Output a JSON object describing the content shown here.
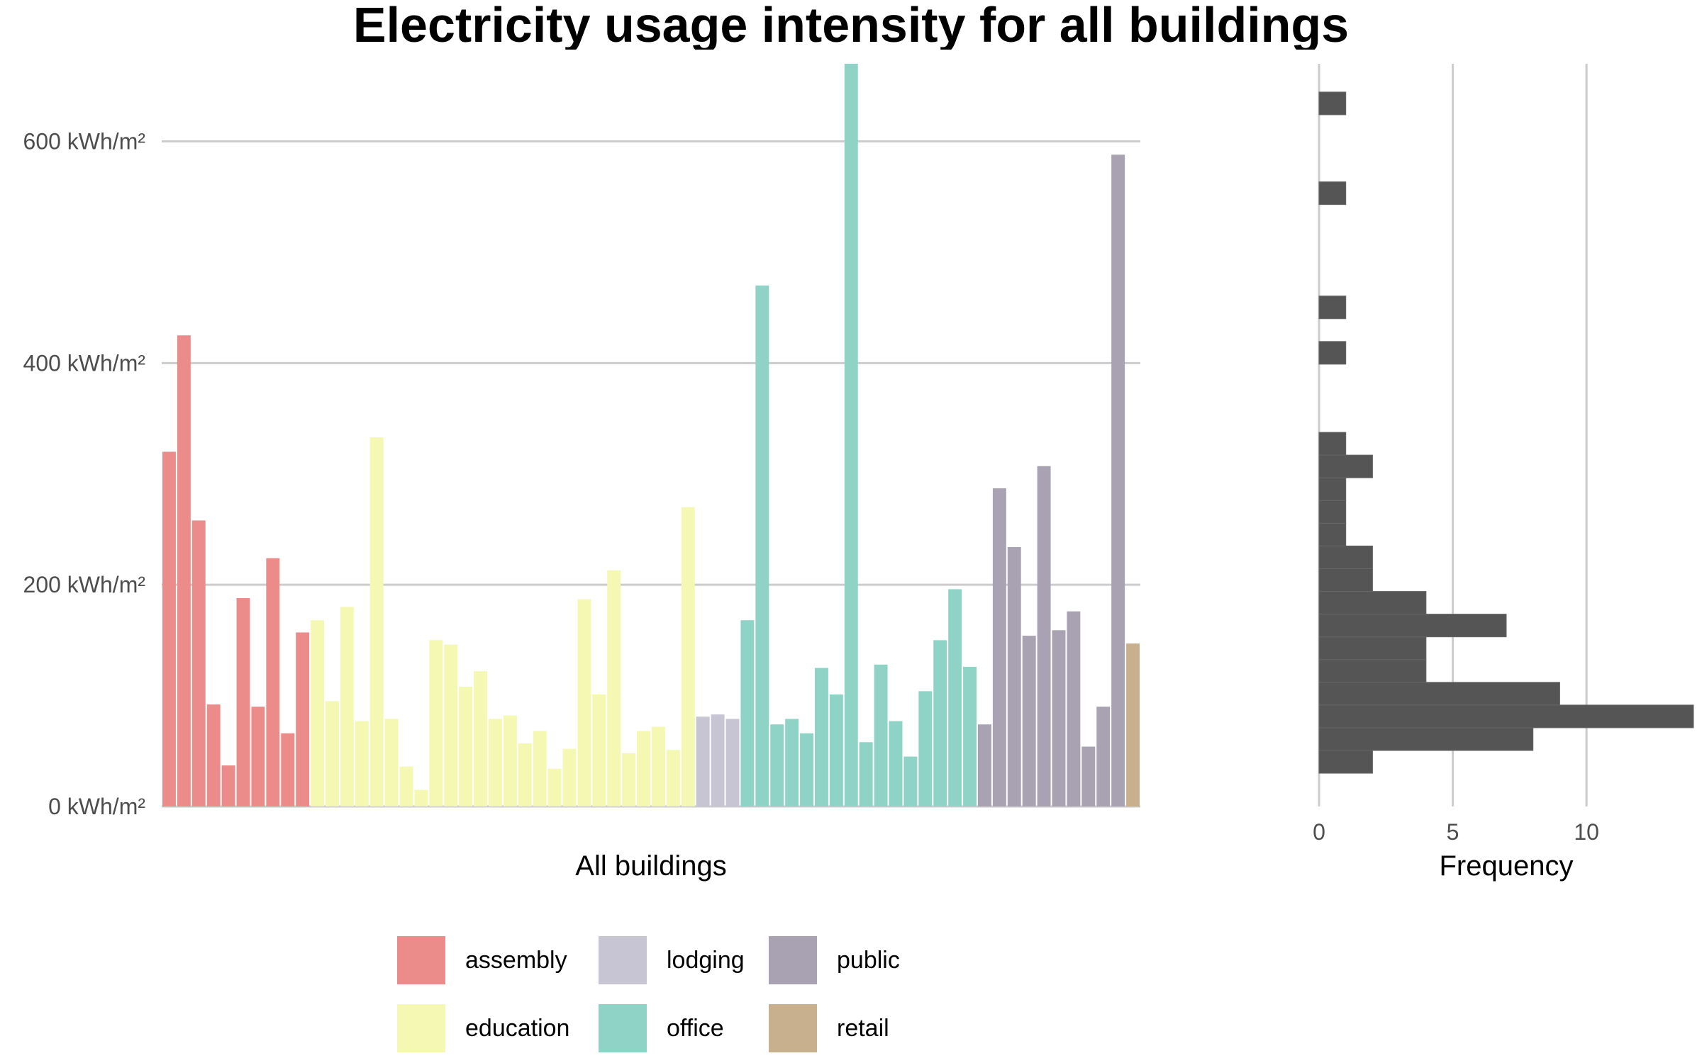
{
  "chart_data": [
    {
      "type": "bar",
      "title": "Electricity usage intensity for all buildings",
      "xlabel": "All buildings",
      "ylabel": "",
      "ylim": [
        0,
        670
      ],
      "y_ticks": [
        0,
        200,
        400,
        600
      ],
      "y_tick_labels": [
        "0 kWh/m²",
        "200 kWh/m²",
        "400 kWh/m²",
        "600 kWh/m²"
      ],
      "grid": "horizontal major",
      "legend_position": "bottom",
      "series": [
        {
          "name": "assembly",
          "color": "#eb8c8a",
          "values": [
            320,
            425,
            258,
            92,
            37,
            188,
            90,
            224,
            66,
            157
          ]
        },
        {
          "name": "education",
          "color": "#f4f8b2",
          "values": [
            168,
            95,
            180,
            77,
            333,
            79,
            36,
            15,
            150,
            146,
            108,
            122,
            79,
            82,
            57,
            68,
            34,
            52,
            187,
            101,
            213,
            48,
            68,
            72,
            51,
            270
          ]
        },
        {
          "name": "lodging",
          "color": "#c7c4d3",
          "values": [
            81,
            83,
            79
          ]
        },
        {
          "name": "office",
          "color": "#8ed3c6",
          "values": [
            168,
            470,
            74,
            79,
            66,
            125,
            101,
            672,
            58,
            128,
            77,
            45,
            104,
            150,
            196,
            126
          ]
        },
        {
          "name": "public",
          "color": "#a9a2b3",
          "values": [
            74,
            287,
            234,
            154,
            307,
            159,
            176,
            54,
            90,
            588
          ]
        },
        {
          "name": "retail",
          "color": "#c8b08f",
          "values": [
            147
          ]
        }
      ]
    },
    {
      "type": "bar",
      "orientation": "horizontal",
      "xlabel": "Frequency",
      "ylabel": "",
      "x_ticks": [
        0,
        5,
        10
      ],
      "x_tick_labels": [
        "0",
        "5",
        "10"
      ],
      "xlim": [
        0,
        14
      ],
      "ylim": [
        0,
        670
      ],
      "bin_width": 20.5,
      "color": "#555555",
      "bins": [
        {
          "from": 30,
          "to": 50.5,
          "count": 2
        },
        {
          "from": 50.5,
          "to": 71,
          "count": 8
        },
        {
          "from": 71,
          "to": 91.5,
          "count": 14
        },
        {
          "from": 91.5,
          "to": 112,
          "count": 9
        },
        {
          "from": 112,
          "to": 132.5,
          "count": 4
        },
        {
          "from": 132.5,
          "to": 153,
          "count": 4
        },
        {
          "from": 153,
          "to": 173.5,
          "count": 7
        },
        {
          "from": 173.5,
          "to": 194,
          "count": 4
        },
        {
          "from": 194,
          "to": 214.5,
          "count": 2
        },
        {
          "from": 214.5,
          "to": 235,
          "count": 2
        },
        {
          "from": 235,
          "to": 255.5,
          "count": 1
        },
        {
          "from": 255.5,
          "to": 276,
          "count": 1
        },
        {
          "from": 276,
          "to": 296.5,
          "count": 1
        },
        {
          "from": 296.5,
          "to": 317,
          "count": 2
        },
        {
          "from": 317,
          "to": 337.5,
          "count": 1
        },
        {
          "from": 399,
          "to": 419.5,
          "count": 1
        },
        {
          "from": 440,
          "to": 460.5,
          "count": 1
        },
        {
          "from": 543,
          "to": 563.5,
          "count": 1
        },
        {
          "from": 624,
          "to": 644.5,
          "count": 1
        }
      ]
    }
  ]
}
